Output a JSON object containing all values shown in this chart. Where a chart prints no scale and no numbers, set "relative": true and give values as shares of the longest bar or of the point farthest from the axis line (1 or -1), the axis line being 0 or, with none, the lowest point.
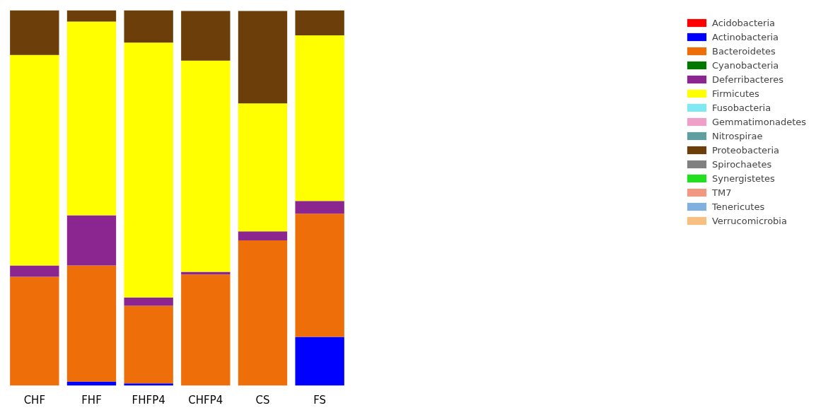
{
  "chart_data": {
    "type": "bar",
    "stacked": true,
    "relative": true,
    "legend": "right",
    "grid": false,
    "categories": [
      "CHF",
      "FHF",
      "FHFP4",
      "CHFP4",
      "CS",
      "FS"
    ],
    "series": [
      {
        "name": "Acidobacteria",
        "color": "#ff0000",
        "values": [
          0,
          0,
          0,
          0,
          0,
          0
        ]
      },
      {
        "name": "Actinobacteria",
        "color": "#0000ff",
        "values": [
          0,
          0.011,
          0.006,
          null,
          null,
          0.13
        ]
      },
      {
        "name": "Bacteroidetes",
        "color": "#ee6f0a",
        "values": [
          0.29,
          0.309,
          0.207,
          0.296,
          0.387,
          0.328
        ]
      },
      {
        "name": "Cyanobacteria",
        "color": "#007800",
        "values": [
          0,
          0,
          0,
          0,
          0,
          0
        ]
      },
      {
        "name": "Deferribacteres",
        "color": "#8b2590",
        "values": [
          0.03,
          0.134,
          0.022,
          0.007,
          0.024,
          0.034
        ]
      },
      {
        "name": "Firmicutes",
        "color": "#ffff00",
        "values": [
          0.561,
          0.516,
          0.679,
          0.563,
          0.341,
          0.441
        ]
      },
      {
        "name": "Fusobacteria",
        "color": "#80e8f0",
        "values": [
          0,
          0,
          0,
          0,
          0,
          0
        ]
      },
      {
        "name": "Gemmatimonadetes",
        "color": "#f0a0c8",
        "values": [
          0,
          0,
          0,
          0,
          0,
          0
        ]
      },
      {
        "name": "Nitrospirae",
        "color": "#5f9f9f",
        "values": [
          0,
          0,
          0,
          0,
          0,
          0
        ]
      },
      {
        "name": "Proteobacteria",
        "color": "#6b3e0a",
        "values": [
          0.119,
          0.03,
          0.086,
          0.132,
          0.246,
          0.067
        ]
      },
      {
        "name": "Spirochaetes",
        "color": "#808080",
        "values": [
          0,
          0,
          0,
          0,
          0,
          0
        ]
      },
      {
        "name": "Synergistetes",
        "color": "#20e020",
        "values": [
          0,
          0,
          0,
          0,
          0,
          0
        ]
      },
      {
        "name": "TM7",
        "color": "#f09880",
        "values": [
          0,
          0,
          0,
          0,
          0,
          0
        ]
      },
      {
        "name": "Tenericutes",
        "color": "#80b0e0",
        "values": [
          0,
          0,
          0,
          0,
          0,
          0
        ]
      },
      {
        "name": "Verrucomicrobia",
        "color": "#f8c080",
        "values": [
          0,
          0,
          0,
          0,
          0,
          0
        ]
      }
    ]
  }
}
